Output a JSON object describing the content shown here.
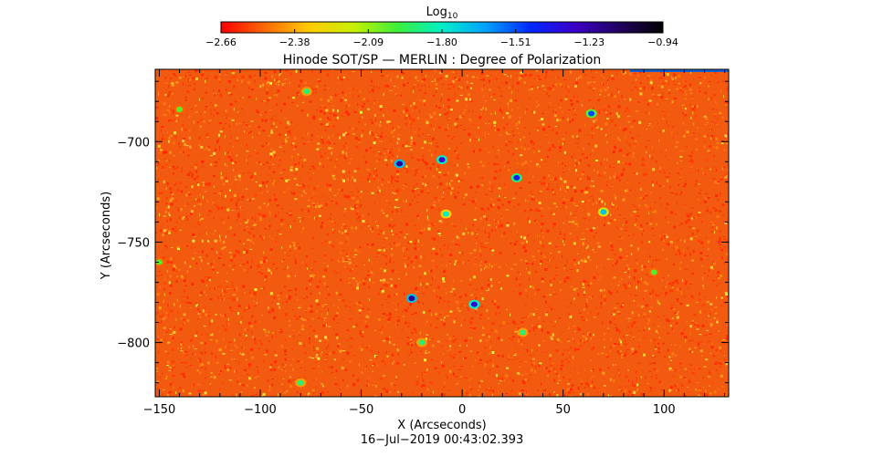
{
  "colorbar": {
    "label_main": "Log",
    "label_sub": "10",
    "ticks": [
      "-2.66",
      "-2.38",
      "-2.09",
      "-1.80",
      "-1.51",
      "-1.23",
      "-0.94"
    ],
    "colormap": [
      "#ff0000",
      "#ff6a00",
      "#ffcc00",
      "#c8f000",
      "#3cf03c",
      "#00f0c8",
      "#00a0ff",
      "#0028ff",
      "#3c00c8",
      "#200060",
      "#000000"
    ]
  },
  "chart_data": {
    "type": "heatmap",
    "title": "Hinode SOT/SP — MERLIN : Degree of Polarization",
    "xlabel": "X (Arcseconds)",
    "ylabel": "Y (Arcseconds)",
    "xlim": [
      -152,
      132
    ],
    "ylim": [
      -827,
      -664
    ],
    "x_ticks": [
      -150,
      -100,
      -50,
      0,
      50,
      100
    ],
    "x_tick_labels": [
      "−150",
      "−100",
      "−50",
      "0",
      "50",
      "100"
    ],
    "y_ticks": [
      -700,
      -750,
      -800
    ],
    "y_tick_labels": [
      "−700",
      "−750",
      "−800"
    ],
    "value_range": [
      -2.66,
      -0.94
    ],
    "background_level": -2.5,
    "features": [
      {
        "x": -77,
        "y": -675,
        "v": -1.9
      },
      {
        "x": -140,
        "y": -684,
        "v": -2.0
      },
      {
        "x": -31,
        "y": -711,
        "v": -1.2
      },
      {
        "x": -10,
        "y": -709,
        "v": -1.3
      },
      {
        "x": 27,
        "y": -718,
        "v": -1.4
      },
      {
        "x": 64,
        "y": -686,
        "v": -1.5
      },
      {
        "x": 70,
        "y": -735,
        "v": -1.7
      },
      {
        "x": -8,
        "y": -736,
        "v": -1.8
      },
      {
        "x": -25,
        "y": -778,
        "v": -1.2
      },
      {
        "x": 6,
        "y": -781,
        "v": -1.3
      },
      {
        "x": -20,
        "y": -800,
        "v": -1.9
      },
      {
        "x": -80,
        "y": -820,
        "v": -1.9
      },
      {
        "x": 30,
        "y": -795,
        "v": -1.9
      },
      {
        "x": -150,
        "y": -760,
        "v": -2.0
      },
      {
        "x": 95,
        "y": -765,
        "v": -2.0
      }
    ]
  },
  "timestamp": "16−Jul−2019 00:43:02.393"
}
